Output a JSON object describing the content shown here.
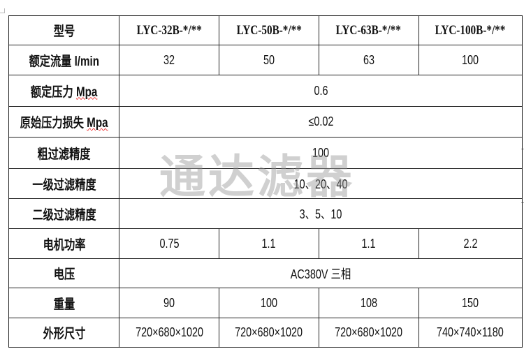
{
  "header": {
    "label": "型号",
    "models": [
      "LYC-32B-*/**",
      "LYC-50B-*/**",
      "LYC-63B-*/**",
      "LYC-100B-*/**"
    ]
  },
  "rows": [
    {
      "label": "额定流量 l/min",
      "values": [
        "32",
        "50",
        "63",
        "100"
      ]
    },
    {
      "label_cn": "额定压力",
      "label_unit": "Mpa",
      "value": "0.6"
    },
    {
      "label_cn": "原始压力损失",
      "label_unit": "Mpa",
      "value": "≤0.02"
    },
    {
      "label": "粗过滤精度",
      "value": "100"
    },
    {
      "label": "一级过滤精度",
      "value": "10、20、40"
    },
    {
      "label": "二级过滤精度",
      "value": "3、5、10"
    },
    {
      "label": "电机功率",
      "values": [
        "0.75",
        "1.1",
        "1.1",
        "2.2"
      ]
    },
    {
      "label": "电压",
      "value": "AC380V 三相"
    },
    {
      "label": "重量",
      "values": [
        "90",
        "100",
        "108",
        "150"
      ]
    },
    {
      "label": "外形尺寸",
      "values": [
        "720×680×1020",
        "720×680×1020",
        "720×680×1020",
        "740×740×1180"
      ]
    }
  ],
  "watermark": "通达滤器"
}
